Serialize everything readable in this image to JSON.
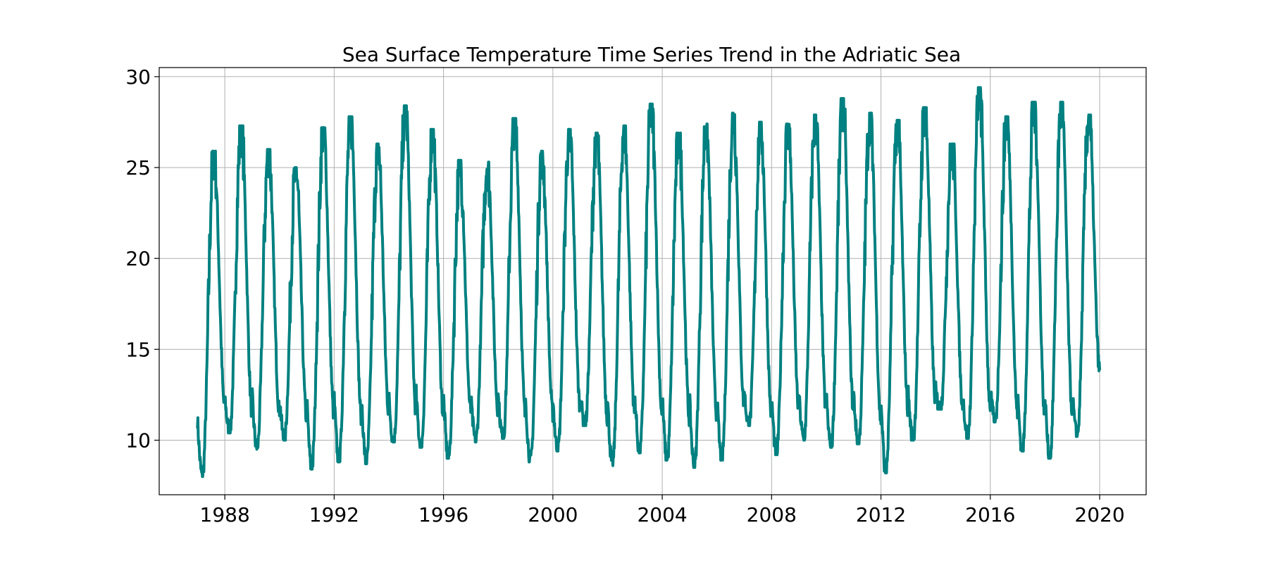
{
  "chart_data": {
    "type": "line",
    "title": "Sea Surface Temperature Time Series Trend in the Adriatic Sea",
    "xlabel": "",
    "ylabel": "",
    "xlim": [
      1985.6,
      2021.7
    ],
    "ylim": [
      7.0,
      30.5
    ],
    "x_ticks": [
      1988,
      1992,
      1996,
      2000,
      2004,
      2008,
      2012,
      2016,
      2020
    ],
    "y_ticks": [
      10,
      15,
      20,
      25,
      30
    ],
    "grid": true,
    "legend": "none",
    "color": "#008080",
    "series": [
      {
        "x_range": [
          1987.0,
          2020.0
        ],
        "annual_min": [
          8.0,
          10.4,
          9.5,
          10.0,
          8.4,
          8.8,
          8.7,
          9.9,
          9.6,
          9.0,
          9.9,
          10.1,
          8.8,
          9.4,
          10.8,
          8.6,
          9.3,
          8.9,
          8.5,
          8.9,
          10.8,
          9.2,
          10.0,
          9.6,
          9.8,
          8.2,
          10.0,
          11.7,
          10.1,
          11.0,
          9.4,
          9.0,
          10.2
        ],
        "annual_max": [
          25.9,
          27.3,
          26.0,
          25.0,
          27.2,
          27.8,
          26.3,
          28.4,
          27.1,
          25.4,
          25.3,
          27.7,
          25.9,
          27.1,
          26.9,
          27.3,
          28.5,
          26.9,
          27.4,
          28.0,
          27.5,
          27.4,
          27.9,
          28.8,
          28.0,
          27.6,
          28.3,
          26.3,
          29.4,
          27.8,
          28.6,
          28.6,
          27.9
        ],
        "end_value": 13.9
      }
    ]
  }
}
